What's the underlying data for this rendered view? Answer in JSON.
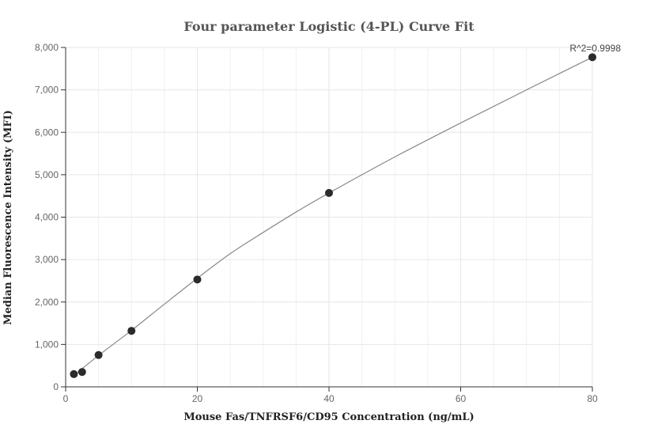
{
  "chart_data": {
    "type": "scatter",
    "title": "Four parameter Logistic (4-PL) Curve Fit",
    "xlabel": "Mouse Fas/TNFRSF6/CD95 Concentration (ng/mL)",
    "ylabel": "Median Fluorescence Intensity (MFI)",
    "xlim": [
      0,
      80
    ],
    "ylim": [
      0,
      8000
    ],
    "xticks": [
      0,
      20,
      40,
      60,
      80
    ],
    "yticks": [
      0,
      1000,
      2000,
      3000,
      4000,
      5000,
      6000,
      7000,
      8000
    ],
    "ytick_labels": [
      "0",
      "1,000",
      "2,000",
      "3,000",
      "4,000",
      "5,000",
      "6,000",
      "7,000",
      "8,000"
    ],
    "grid": true,
    "annotation": "R^2=0.9998",
    "series": [
      {
        "x": [
          1.25,
          2.5,
          5,
          10,
          20,
          40,
          80
        ],
        "y": [
          300,
          350,
          750,
          1320,
          2530,
          4570,
          7770
        ]
      }
    ],
    "fit_curve": {
      "x": [
        1.25,
        5,
        10,
        15,
        20,
        25,
        30,
        35,
        40,
        50,
        60,
        70,
        80
      ],
      "y": [
        270,
        740,
        1330,
        1950,
        2560,
        3140,
        3640,
        4120,
        4570,
        5420,
        6220,
        7000,
        7770
      ]
    }
  }
}
